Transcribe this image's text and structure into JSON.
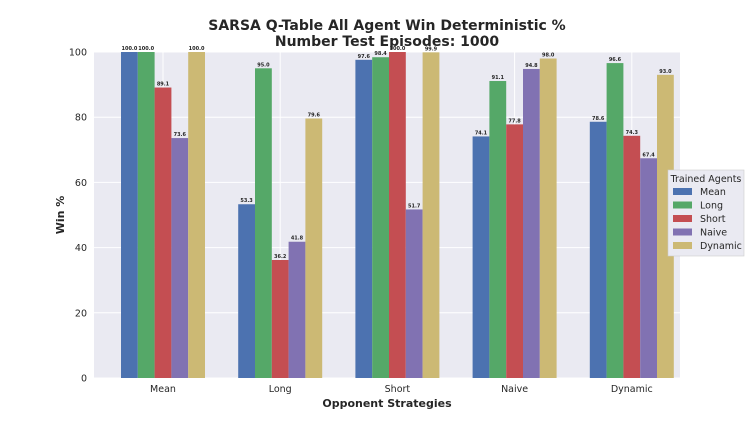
{
  "chart_data": {
    "type": "bar",
    "title": "SARSA Q-Table All Agent Win Deterministic %",
    "subtitle": "Number Test Episodes: 1000",
    "xlabel": "Opponent Strategies",
    "ylabel": "Win %",
    "ylim": [
      0,
      100
    ],
    "yticks": [
      "0",
      "20",
      "40",
      "60",
      "80",
      "100"
    ],
    "categories": [
      "Mean",
      "Long",
      "Short",
      "Naive",
      "Dynamic"
    ],
    "series": [
      {
        "name": "Mean",
        "color": "#4c72b0",
        "values": [
          100.0,
          53.3,
          97.6,
          74.1,
          78.6
        ],
        "labels": [
          "100.0",
          "53.3",
          "97.6",
          "74.1",
          "78.6"
        ]
      },
      {
        "name": "Long",
        "color": "#55a868",
        "values": [
          100.0,
          95.0,
          98.4,
          91.1,
          96.6
        ],
        "labels": [
          "100.0",
          "95.0",
          "98.4",
          "91.1",
          "96.6"
        ]
      },
      {
        "name": "Short",
        "color": "#c44e52",
        "values": [
          89.1,
          36.2,
          100.0,
          77.8,
          74.3
        ],
        "labels": [
          "89.1",
          "36.2",
          "100.0",
          "77.8",
          "74.3"
        ]
      },
      {
        "name": "Naive",
        "color": "#8172b2",
        "values": [
          73.6,
          41.8,
          51.7,
          94.8,
          67.4
        ],
        "labels": [
          "73.6",
          "41.8",
          "51.7",
          "94.8",
          "67.4"
        ]
      },
      {
        "name": "Dynamic",
        "color": "#ccb974",
        "values": [
          100.0,
          79.6,
          99.9,
          98.0,
          93.0
        ],
        "labels": [
          "100.0",
          "79.6",
          "99.9",
          "98.0",
          "93.0"
        ]
      }
    ],
    "legend": {
      "title": "Trained Agents",
      "placement": "center-right"
    },
    "grid": true,
    "background": "#eaeaf2"
  }
}
